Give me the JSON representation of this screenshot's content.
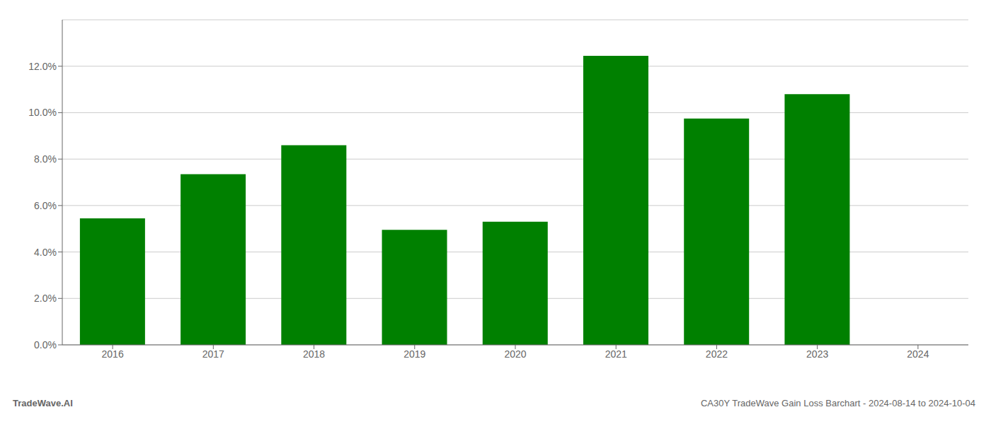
{
  "chart_data": {
    "type": "bar",
    "categories": [
      "2016",
      "2017",
      "2018",
      "2019",
      "2020",
      "2021",
      "2022",
      "2023",
      "2024"
    ],
    "values": [
      0.0545,
      0.0735,
      0.086,
      0.0495,
      0.053,
      0.1245,
      0.0975,
      0.108,
      null
    ],
    "color": "#008000",
    "ylim": [
      0,
      0.14
    ],
    "yticks": [
      {
        "value": 0.0,
        "label": "0.0%"
      },
      {
        "value": 0.02,
        "label": "2.0%"
      },
      {
        "value": 0.04,
        "label": "4.0%"
      },
      {
        "value": 0.06,
        "label": "6.0%"
      },
      {
        "value": 0.08,
        "label": "8.0%"
      },
      {
        "value": 0.1,
        "label": "10.0%"
      },
      {
        "value": 0.12,
        "label": "12.0%"
      }
    ],
    "grid": true,
    "annotations": [
      "TradeWave.AI",
      "CA30Y TradeWave Gain Loss Barchart - 2024-08-14 to 2024-10-04"
    ]
  }
}
